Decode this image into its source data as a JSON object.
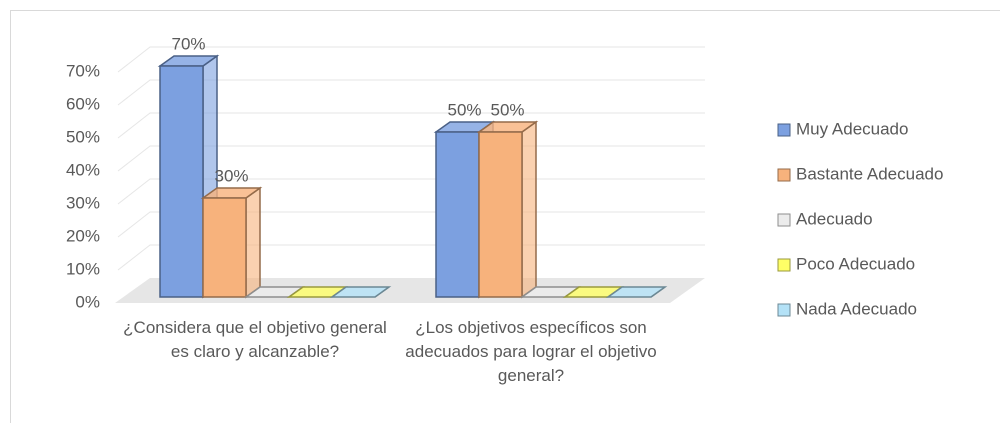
{
  "chart_data": {
    "type": "bar3d",
    "categories": [
      "¿Considera que el objetivo general es claro y alcanzable?",
      "¿Los objetivos específicos son adecuados para lograr el objetivo general?"
    ],
    "series": [
      {
        "name": "Muy Adecuado",
        "color": "#7ca0e0",
        "values": [
          70,
          50
        ],
        "value_labels": [
          "70%",
          "50%"
        ]
      },
      {
        "name": "Bastante Adecuado",
        "color": "#f7b27c",
        "values": [
          30,
          50
        ],
        "value_labels": [
          "30%",
          "50%"
        ]
      },
      {
        "name": "Adecuado",
        "color": "#ececec",
        "values": [
          0,
          0
        ]
      },
      {
        "name": "Poco Adecuado",
        "color": "#ffff66",
        "values": [
          0,
          0
        ]
      },
      {
        "name": "Nada Adecuado",
        "color": "#b4e2f7",
        "values": [
          0,
          0
        ]
      }
    ],
    "ylim": [
      0,
      70
    ],
    "yticks": [
      {
        "value": 0,
        "label": "0%"
      },
      {
        "value": 10,
        "label": "10%"
      },
      {
        "value": 20,
        "label": "20%"
      },
      {
        "value": 30,
        "label": "30%"
      },
      {
        "value": 40,
        "label": "40%"
      },
      {
        "value": 50,
        "label": "50%"
      },
      {
        "value": 60,
        "label": "60%"
      },
      {
        "value": 70,
        "label": "70%"
      }
    ],
    "grid": true,
    "legend": "right"
  }
}
